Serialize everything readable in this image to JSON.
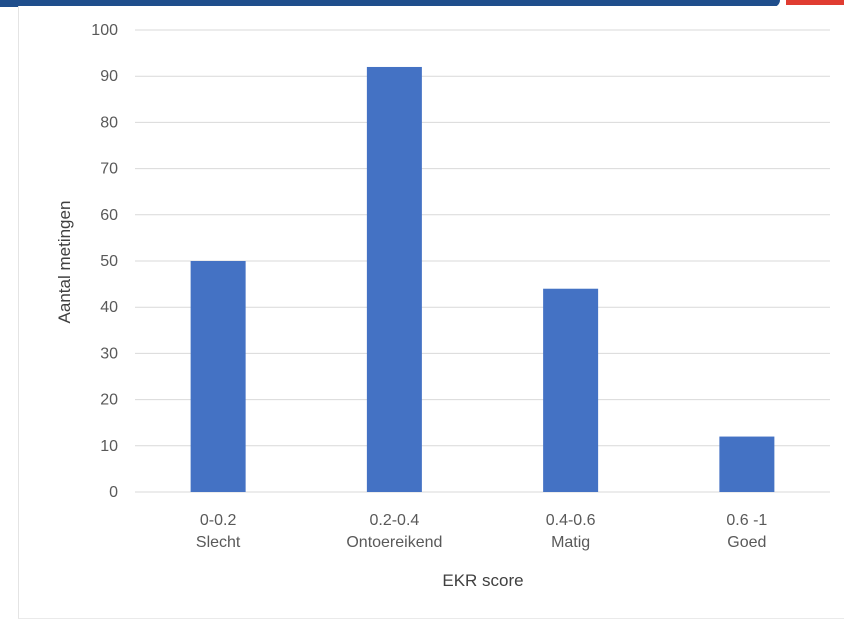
{
  "chart_data": {
    "type": "bar",
    "title": "",
    "xlabel": "EKR score",
    "ylabel": "Aantal metingen",
    "categories": [
      [
        "0-0.2",
        "Slecht"
      ],
      [
        "0.2-0.4",
        "Ontoereikend"
      ],
      [
        "0.4-0.6",
        "Matig"
      ],
      [
        "0.6 -1",
        "Goed"
      ]
    ],
    "values": [
      50,
      92,
      44,
      12
    ],
    "ylim": [
      0,
      100
    ],
    "yticks": [
      "0",
      "10",
      "20",
      "30",
      "40",
      "50",
      "60",
      "70",
      "80",
      "90",
      "100"
    ],
    "grid": true,
    "legend": "none",
    "bar_color": "#4472c4"
  }
}
